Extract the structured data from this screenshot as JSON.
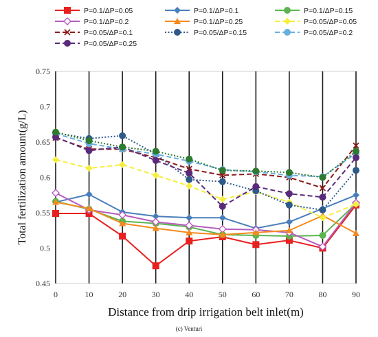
{
  "chart_data": {
    "type": "line",
    "xlabel": "Distance from drip irrigation belt inlet(m)",
    "ylabel": "Total fertilization amount(g/L)",
    "caption": "(c) Venturi",
    "x": [
      0,
      10,
      20,
      30,
      40,
      50,
      60,
      70,
      80,
      90
    ],
    "xlim": [
      0,
      90
    ],
    "ylim": [
      0.45,
      0.75
    ],
    "yticks": [
      "0.45",
      "0.5",
      "0.55",
      "0.6",
      "0.65",
      "0.7",
      "0.75"
    ],
    "grid": "vertical lines at each x category",
    "legend_position": "top",
    "series": [
      {
        "name": "P=0.1/ΔP=0.05",
        "color": "#e8201f",
        "marker": "square",
        "dash": "solid",
        "values": [
          0.549,
          0.549,
          0.517,
          0.475,
          0.51,
          0.516,
          0.505,
          0.511,
          0.5,
          0.561
        ]
      },
      {
        "name": "P=0.1/ΔP=0.1",
        "color": "#4a7ebb",
        "marker": "diamond",
        "dash": "solid",
        "values": [
          0.565,
          0.576,
          0.551,
          0.545,
          0.543,
          0.543,
          0.528,
          0.537,
          0.556,
          0.575
        ]
      },
      {
        "name": "P=0.1/ΔP=0.15",
        "color": "#5bb450",
        "marker": "circle",
        "dash": "solid",
        "values": [
          0.566,
          0.555,
          0.538,
          0.535,
          0.53,
          0.519,
          0.518,
          0.517,
          0.518,
          0.563
        ]
      },
      {
        "name": "P=0.1/ΔP=0.2",
        "color": "#b75bbf",
        "marker": "diamond-open",
        "dash": "solid",
        "values": [
          0.578,
          0.554,
          0.547,
          0.537,
          0.532,
          0.527,
          0.526,
          0.522,
          0.502,
          0.564
        ]
      },
      {
        "name": "P=0.1/ΔP=0.25",
        "color": "#f28a1e",
        "marker": "triangle",
        "dash": "solid",
        "values": [
          0.565,
          0.556,
          0.535,
          0.528,
          0.522,
          0.519,
          0.522,
          0.525,
          0.546,
          0.521
        ]
      },
      {
        "name": "P=0.05/ΔP=0.05",
        "color": "#f6ee3c",
        "marker": "diamond",
        "dash": "dashed",
        "values": [
          0.625,
          0.613,
          0.618,
          0.603,
          0.588,
          0.569,
          0.58,
          0.565,
          0.543,
          0.562
        ]
      },
      {
        "name": "P=0.05/ΔP=0.1",
        "color": "#8b1a1a",
        "marker": "x",
        "dash": "dashed",
        "values": [
          0.656,
          0.64,
          0.64,
          0.628,
          0.612,
          0.603,
          0.605,
          0.6,
          0.585,
          0.645
        ]
      },
      {
        "name": "P=0.05/ΔP=0.15",
        "color": "#2e5a8a",
        "marker": "circle",
        "dash": "dotted",
        "values": [
          0.663,
          0.655,
          0.659,
          0.633,
          0.597,
          0.594,
          0.581,
          0.561,
          0.554,
          0.61
        ]
      },
      {
        "name": "P=0.05/ΔP=0.2",
        "color": "#6aaee0",
        "marker": "circle",
        "dash": "dashed",
        "values": [
          0.662,
          0.648,
          0.64,
          0.633,
          0.623,
          0.611,
          0.608,
          0.603,
          0.601,
          0.634
        ]
      },
      {
        "name": "P=0.05/ΔP=0.25",
        "color": "#5a2a7a",
        "marker": "circle",
        "dash": "dashed",
        "values": [
          0.657,
          0.638,
          0.643,
          0.624,
          0.606,
          0.559,
          0.587,
          0.577,
          0.572,
          0.628
        ]
      },
      {
        "name": "",
        "color": "#2e7a2e",
        "marker": "circle",
        "dash": "dotted",
        "values": [
          0.664,
          0.652,
          0.643,
          0.637,
          0.626,
          0.61,
          0.609,
          0.607,
          0.6,
          0.637
        ]
      }
    ]
  }
}
